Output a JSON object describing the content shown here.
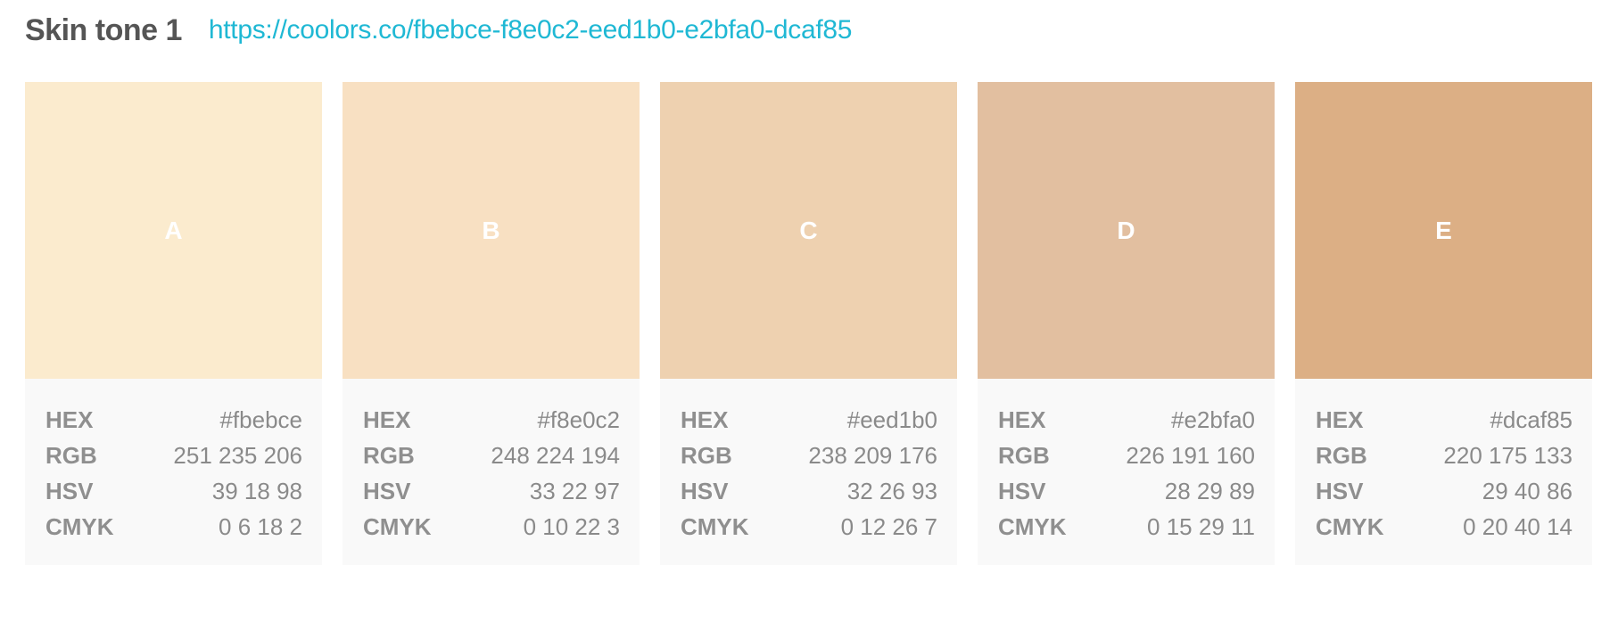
{
  "header": {
    "title": "Skin tone 1",
    "link": "https://coolors.co/fbebce-f8e0c2-eed1b0-e2bfa0-dcaf85"
  },
  "labels": {
    "hex": "HEX",
    "rgb": "RGB",
    "hsv": "HSV",
    "cmyk": "CMYK"
  },
  "colors": [
    {
      "letter": "A",
      "swatch": "#fbebce",
      "hex": "#fbebce",
      "rgb": "251 235 206",
      "hsv": "39 18 98",
      "cmyk": "0 6 18 2"
    },
    {
      "letter": "B",
      "swatch": "#f8e0c2",
      "hex": "#f8e0c2",
      "rgb": "248 224 194",
      "hsv": "33 22 97",
      "cmyk": "0 10 22 3"
    },
    {
      "letter": "C",
      "swatch": "#eed1b0",
      "hex": "#eed1b0",
      "rgb": "238 209 176",
      "hsv": "32 26 93",
      "cmyk": "0 12 26 7"
    },
    {
      "letter": "D",
      "swatch": "#e2bfa0",
      "hex": "#e2bfa0",
      "rgb": "226 191 160",
      "hsv": "28 29 89",
      "cmyk": "0 15 29 11"
    },
    {
      "letter": "E",
      "swatch": "#dcaf85",
      "hex": "#dcaf85",
      "rgb": "220 175 133",
      "hsv": "29 40 86",
      "cmyk": "0 20 40 14"
    }
  ]
}
